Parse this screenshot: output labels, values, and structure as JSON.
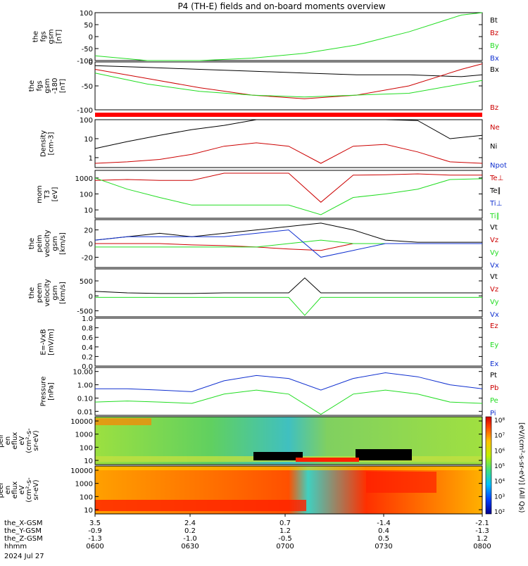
{
  "title": "P4 (TH-E) fields and on-board moments overview",
  "colors": {
    "black": "#000000",
    "red": "#cc0000",
    "green": "#22dd22",
    "blue": "#1030d0"
  },
  "chart_data": [
    {
      "id": "fgs",
      "type": "line",
      "ylabel": [
        "the",
        "fgs",
        "gsm",
        "[nT]"
      ],
      "ylim": [
        -100,
        100
      ],
      "ticks": [
        "100",
        "50",
        "0",
        "-50",
        "-100"
      ],
      "legend": [
        {
          "name": "Bt",
          "color": "#000000"
        },
        {
          "name": "Bz",
          "color": "#cc0000"
        },
        {
          "name": "By",
          "color": "#22dd22"
        },
        {
          "name": "Bx",
          "color": "#1030d0"
        }
      ],
      "x": [
        0,
        5,
        10,
        15,
        20,
        25,
        30,
        35,
        37
      ],
      "series": [
        {
          "name": "By",
          "color": "#22dd22",
          "values": [
            -80,
            -100,
            -100,
            -90,
            -70,
            -35,
            20,
            90,
            100
          ]
        }
      ]
    },
    {
      "id": "fgs_m180",
      "type": "line",
      "ylabel": [
        "the",
        "fgs",
        "gsm",
        "-180",
        "[nT]"
      ],
      "ylim": [
        -130,
        0
      ],
      "ticks": [
        "0",
        "-50",
        "-100"
      ],
      "legend": [
        {
          "name": "Bx",
          "color": "#000000"
        },
        {
          "name": "Bz",
          "color": "#cc0000"
        }
      ],
      "x": [
        0,
        5,
        10,
        15,
        20,
        25,
        30,
        35,
        37
      ],
      "series": [
        {
          "name": "Bx",
          "color": "#000000",
          "values": [
            -10,
            -15,
            -20,
            -25,
            -30,
            -35,
            -35,
            -40,
            -35
          ]
        },
        {
          "name": "Bz",
          "color": "#cc0000",
          "values": [
            -20,
            -45,
            -70,
            -90,
            -100,
            -90,
            -65,
            -20,
            -5
          ]
        },
        {
          "name": "By",
          "color": "#22dd22",
          "values": [
            -30,
            -60,
            -80,
            -90,
            -95,
            -90,
            -85,
            -60,
            -50
          ]
        }
      ]
    },
    {
      "id": "density",
      "type": "line",
      "log": true,
      "ylabel": [
        "Density",
        "[cm-3]"
      ],
      "ylim": [
        0.3,
        100
      ],
      "ticks": [
        "100",
        "10",
        "1"
      ],
      "tickvals": [
        100,
        10,
        1
      ],
      "legend": [
        {
          "name": "Ne",
          "color": "#cc0000"
        },
        {
          "name": "Ni",
          "color": "#000000"
        },
        {
          "name": "Npot",
          "color": "#1030d0"
        }
      ],
      "x": [
        0,
        10,
        20,
        30,
        40,
        50,
        60,
        70,
        80,
        90,
        100,
        110,
        120
      ],
      "series": [
        {
          "name": "Ni",
          "color": "#000000",
          "values": [
            3,
            7,
            15,
            30,
            50,
            100,
            100,
            100,
            100,
            100,
            90,
            10,
            15
          ]
        },
        {
          "name": "Ne",
          "color": "#cc0000",
          "values": [
            0.5,
            0.6,
            0.8,
            1.5,
            4,
            6,
            4,
            0.5,
            4,
            5,
            2,
            0.6,
            0.5
          ]
        }
      ]
    },
    {
      "id": "moms_t",
      "type": "line",
      "log": true,
      "ylabel": [
        "mom",
        "T3",
        "[eV]"
      ],
      "ylim": [
        3,
        3000
      ],
      "ticks": [
        "1000",
        "100",
        "10"
      ],
      "tickvals": [
        1000,
        100,
        10
      ],
      "legend": [
        {
          "name": "Te⊥",
          "color": "#cc0000"
        },
        {
          "name": "Te∥",
          "color": "#000000"
        },
        {
          "name": "Ti⊥",
          "color": "#1030d0"
        },
        {
          "name": "Ti∥",
          "color": "#22dd22"
        }
      ],
      "x": [
        0,
        10,
        20,
        30,
        40,
        50,
        60,
        70,
        80,
        90,
        100,
        110,
        120
      ],
      "series": [
        {
          "name": "Te⊥",
          "color": "#cc0000",
          "values": [
            700,
            800,
            700,
            700,
            2000,
            2000,
            2000,
            30,
            1500,
            1600,
            1800,
            1500,
            1500
          ]
        },
        {
          "name": "Ti∥",
          "color": "#22dd22",
          "values": [
            1000,
            200,
            60,
            20,
            20,
            20,
            20,
            5,
            60,
            100,
            200,
            800,
            900
          ]
        }
      ]
    },
    {
      "id": "peim_v",
      "type": "line",
      "ylabel": [
        "the",
        "peim",
        "velocity",
        "gsm",
        "[km/s]"
      ],
      "ylim": [
        -35,
        35
      ],
      "ticks": [
        "20",
        "0",
        "-20"
      ],
      "tickvals": [
        20,
        0,
        -20
      ],
      "legend": [
        {
          "name": "Vt",
          "color": "#000000"
        },
        {
          "name": "Vz",
          "color": "#cc0000"
        },
        {
          "name": "Vy",
          "color": "#22dd22"
        },
        {
          "name": "Vx",
          "color": "#1030d0"
        }
      ],
      "x": [
        0,
        10,
        20,
        30,
        40,
        50,
        60,
        70,
        80,
        90,
        100,
        110,
        120
      ],
      "series": [
        {
          "name": "Vt",
          "color": "#000000",
          "values": [
            5,
            10,
            15,
            10,
            15,
            20,
            25,
            30,
            20,
            5,
            2,
            2,
            2
          ]
        },
        {
          "name": "Vz",
          "color": "#cc0000",
          "values": [
            0,
            0,
            0,
            -2,
            -3,
            -5,
            -8,
            -10,
            0,
            0,
            0,
            0,
            0
          ]
        },
        {
          "name": "Vy",
          "color": "#22dd22",
          "values": [
            -5,
            -5,
            -5,
            -5,
            -5,
            -5,
            0,
            5,
            0,
            0,
            0,
            0,
            0
          ]
        },
        {
          "name": "Vx",
          "color": "#1030d0",
          "values": [
            5,
            10,
            10,
            10,
            10,
            15,
            20,
            -20,
            -10,
            0,
            0,
            0,
            0
          ]
        }
      ]
    },
    {
      "id": "peem_v",
      "type": "line",
      "ylabel": [
        "the",
        "peem",
        "velocity",
        "gsm",
        "[km/s]"
      ],
      "ylim": [
        -700,
        900
      ],
      "ticks": [
        "500",
        "0",
        "-500"
      ],
      "tickvals": [
        500,
        0,
        -500
      ],
      "legend": [
        {
          "name": "Vt",
          "color": "#000000"
        },
        {
          "name": "Vz",
          "color": "#cc0000"
        },
        {
          "name": "Vy",
          "color": "#22dd22"
        },
        {
          "name": "Vx",
          "color": "#1030d0"
        }
      ],
      "x": [
        0,
        10,
        20,
        30,
        40,
        50,
        60,
        65,
        70,
        80,
        90,
        100,
        110,
        120
      ],
      "series": [
        {
          "name": "Vt",
          "color": "#000000",
          "values": [
            150,
            100,
            80,
            80,
            100,
            100,
            100,
            600,
            100,
            100,
            100,
            100,
            100,
            100
          ]
        },
        {
          "name": "Vy",
          "color": "#22dd22",
          "values": [
            -50,
            -50,
            -50,
            -50,
            -50,
            -50,
            -50,
            -650,
            -50,
            -50,
            -50,
            -50,
            -50,
            -50
          ]
        }
      ]
    },
    {
      "id": "efield",
      "type": "line",
      "ylabel": [
        "E=-VxB",
        "[mV/m]"
      ],
      "ylim": [
        0,
        1
      ],
      "ticks": [
        "1.0",
        "0.8",
        "0.6",
        "0.4",
        "0.2",
        "0.0"
      ],
      "tickvals": [
        1,
        0.8,
        0.6,
        0.4,
        0.2,
        0
      ],
      "legend": [
        {
          "name": "Ez",
          "color": "#cc0000"
        },
        {
          "name": "Ey",
          "color": "#22dd22"
        },
        {
          "name": "Ex",
          "color": "#1030d0"
        }
      ],
      "series": []
    },
    {
      "id": "pressure",
      "type": "line",
      "log": true,
      "ylabel": [
        "Pressure",
        "[nPa]"
      ],
      "ylim": [
        0.005,
        20
      ],
      "ticks": [
        "10.00",
        "1.00",
        "0.10",
        "0.01"
      ],
      "tickvals": [
        10,
        1,
        0.1,
        0.01
      ],
      "legend": [
        {
          "name": "Pt",
          "color": "#000000"
        },
        {
          "name": "Pb",
          "color": "#cc0000"
        },
        {
          "name": "Pe",
          "color": "#22dd22"
        },
        {
          "name": "Pi",
          "color": "#1030d0"
        }
      ],
      "x": [
        0,
        10,
        20,
        30,
        40,
        50,
        60,
        70,
        80,
        90,
        100,
        110,
        120
      ],
      "series": [
        {
          "name": "Pi",
          "color": "#1030d0",
          "values": [
            0.5,
            0.5,
            0.4,
            0.3,
            2,
            5,
            3,
            0.4,
            3,
            8,
            4,
            1,
            0.5
          ]
        },
        {
          "name": "Pe",
          "color": "#22dd22",
          "values": [
            0.05,
            0.06,
            0.05,
            0.04,
            0.2,
            0.4,
            0.2,
            0.006,
            0.2,
            0.4,
            0.2,
            0.05,
            0.04
          ]
        }
      ]
    },
    {
      "id": "peir_en",
      "type": "heatmap",
      "ylabel": [
        "the",
        "peir",
        "en",
        "eflux",
        "eV",
        "(cm²-s-",
        "sr-eV)"
      ],
      "ticks": [
        "10000",
        "1000",
        "100",
        "10"
      ]
    },
    {
      "id": "peer_en",
      "type": "heatmap",
      "ylabel": [
        "the",
        "peer",
        "en",
        "eflux",
        "eV",
        "(cm²-s-",
        "sr-eV)"
      ],
      "ticks": [
        "10000",
        "1000",
        "100",
        "10"
      ]
    }
  ],
  "colorbar": {
    "ticks": [
      "10⁸",
      "10⁷",
      "10⁶",
      "10⁵",
      "10⁴",
      "10³",
      "10²"
    ],
    "label": "[eV/(cm²-s-sr-eV)] (All Qs)"
  },
  "xaxis": {
    "rows": [
      {
        "label": "the_X-GSM",
        "values": [
          "3.5",
          "2.4",
          "0.7",
          "-1.4",
          "-2.1"
        ]
      },
      {
        "label": "the_Y-GSM",
        "values": [
          "-0.9",
          "0.2",
          "1.2",
          "0.4",
          "-1.3"
        ]
      },
      {
        "label": "the_Z-GSM",
        "values": [
          "-1.3",
          "-1.0",
          "-0.5",
          "0.5",
          "1.2"
        ]
      },
      {
        "label": "hhmm",
        "values": [
          "0600",
          "0630",
          "0700",
          "0730",
          "0800"
        ]
      }
    ],
    "date": "2024 Jul 27"
  }
}
